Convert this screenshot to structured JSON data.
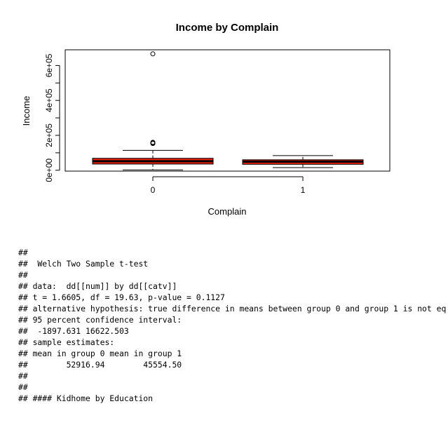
{
  "chart_data": {
    "type": "boxplot",
    "title": "Income by Complain",
    "xlabel": "Complain",
    "ylabel": "Income",
    "categories": [
      "0",
      "1"
    ],
    "ylim": [
      -5000,
      690000
    ],
    "yticks": [
      {
        "value": 0,
        "label": "0e+00"
      },
      {
        "value": 200000,
        "label": "2e+05"
      },
      {
        "value": 400000,
        "label": "4e+05"
      },
      {
        "value": 600000,
        "label": "6e+05"
      }
    ],
    "boxes": [
      {
        "category": "0",
        "whisker_low": 2000,
        "q1": 35500,
        "median": 51500,
        "q3": 68500,
        "whisker_high": 114000,
        "outliers": [
          666666,
          153000,
          157000,
          160000
        ]
      },
      {
        "category": "1",
        "whisker_low": 15000,
        "q1": 34000,
        "median": 49000,
        "q3": 60000,
        "whisker_high": 84000,
        "outliers": []
      }
    ],
    "box_fill": "#e8210e",
    "grid": false
  },
  "console": {
    "lines": [
      "##",
      "##  Welch Two Sample t-test",
      "##",
      "## data:  dd[[num]] by dd[[catv]]",
      "## t = 1.6605, df = 19.63, p-value = 0.1127",
      "## alternative hypothesis: true difference in means between group 0 and group 1 is not eq",
      "## 95 percent confidence interval:",
      "##  -1897.631 16622.503",
      "## sample estimates:",
      "## mean in group 0 mean in group 1",
      "##        52916.94        45554.50",
      "##",
      "##",
      "## #### Kidhome by Education"
    ]
  }
}
